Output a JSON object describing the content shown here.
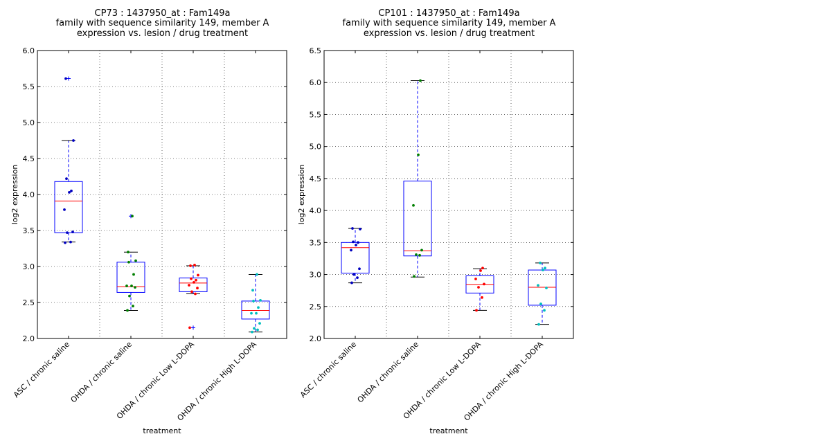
{
  "chart_data": [
    {
      "type": "box",
      "title_lines": [
        "CP73 : 1437950_at : Fam149a",
        "family with sequence similarity 149, member A",
        "expression vs. lesion / drug treatment"
      ],
      "xlabel": "treatment",
      "ylabel": "log2 expression",
      "ylim": [
        2.0,
        6.0
      ],
      "yticks": [
        "2.0",
        "2.5",
        "3.0",
        "3.5",
        "4.0",
        "4.5",
        "5.0",
        "5.5",
        "6.0"
      ],
      "grid": true,
      "categories": [
        "ASC / chronic saline",
        "OHDA / chronic saline",
        "OHDA / chronic Low L-DOPA",
        "OHDA / chronic High L-DOPA"
      ],
      "boxes": [
        {
          "color": "#0000bf",
          "q1": 3.47,
          "median": 3.91,
          "q3": 4.18,
          "whisker_low": 3.34,
          "whisker_high": 4.75,
          "outliers": [
            5.61
          ],
          "points": [
            3.33,
            3.34,
            3.47,
            3.48,
            3.79,
            4.03,
            4.05,
            4.22,
            4.75,
            5.61
          ]
        },
        {
          "color": "#007f00",
          "q1": 2.64,
          "median": 2.72,
          "q3": 3.06,
          "whisker_low": 2.39,
          "whisker_high": 3.2,
          "outliers": [
            3.7
          ],
          "points": [
            2.39,
            2.45,
            2.59,
            2.71,
            2.73,
            2.73,
            2.89,
            3.06,
            3.08,
            3.2,
            3.7
          ]
        },
        {
          "color": "#ff0000",
          "q1": 2.65,
          "median": 2.77,
          "q3": 2.84,
          "whisker_low": 2.62,
          "whisker_high": 3.01,
          "outliers": [
            2.15
          ],
          "points": [
            2.15,
            2.62,
            2.65,
            2.7,
            2.74,
            2.78,
            2.81,
            2.83,
            2.88,
            3.01,
            3.02
          ]
        },
        {
          "color": "#00bfbf",
          "q1": 2.27,
          "median": 2.39,
          "q3": 2.52,
          "whisker_low": 2.09,
          "whisker_high": 2.89,
          "outliers": [],
          "points": [
            2.09,
            2.12,
            2.14,
            2.21,
            2.35,
            2.35,
            2.43,
            2.52,
            2.53,
            2.67,
            2.89
          ]
        }
      ]
    },
    {
      "type": "box",
      "title_lines": [
        "CP101 : 1437950_at : Fam149a",
        "family with sequence similarity 149, member A",
        "expression vs. lesion / drug treatment"
      ],
      "xlabel": "treatment",
      "ylabel": "log2 expression",
      "ylim": [
        2.0,
        6.5
      ],
      "yticks": [
        "2.0",
        "2.5",
        "3.0",
        "3.5",
        "4.0",
        "4.5",
        "5.0",
        "5.5",
        "6.0",
        "6.5"
      ],
      "grid": true,
      "categories": [
        "ASC / chronic saline",
        "OHDA / chronic saline",
        "OHDA / chronic Low L-DOPA",
        "OHDA / chronic High L-DOPA"
      ],
      "boxes": [
        {
          "color": "#0000bf",
          "q1": 3.02,
          "median": 3.42,
          "q3": 3.5,
          "whisker_low": 2.87,
          "whisker_high": 3.72,
          "outliers": [],
          "points": [
            2.87,
            2.95,
            3.0,
            3.09,
            3.38,
            3.46,
            3.5,
            3.51,
            3.71,
            3.72
          ]
        },
        {
          "color": "#007f00",
          "q1": 3.29,
          "median": 3.37,
          "q3": 4.46,
          "whisker_low": 2.96,
          "whisker_high": 6.03,
          "outliers": [],
          "points": [
            2.97,
            3.3,
            3.31,
            3.38,
            4.08,
            4.87,
            6.03
          ]
        },
        {
          "color": "#ff0000",
          "q1": 2.71,
          "median": 2.84,
          "q3": 2.98,
          "whisker_low": 2.44,
          "whisker_high": 3.09,
          "outliers": [],
          "points": [
            2.44,
            2.64,
            2.8,
            2.85,
            2.93,
            3.06,
            3.1
          ]
        },
        {
          "color": "#00bfbf",
          "q1": 2.52,
          "median": 2.8,
          "q3": 3.07,
          "whisker_low": 2.22,
          "whisker_high": 3.18,
          "outliers": [],
          "points": [
            2.22,
            2.44,
            2.54,
            2.79,
            2.83,
            3.07,
            3.1,
            3.18
          ]
        }
      ]
    }
  ]
}
